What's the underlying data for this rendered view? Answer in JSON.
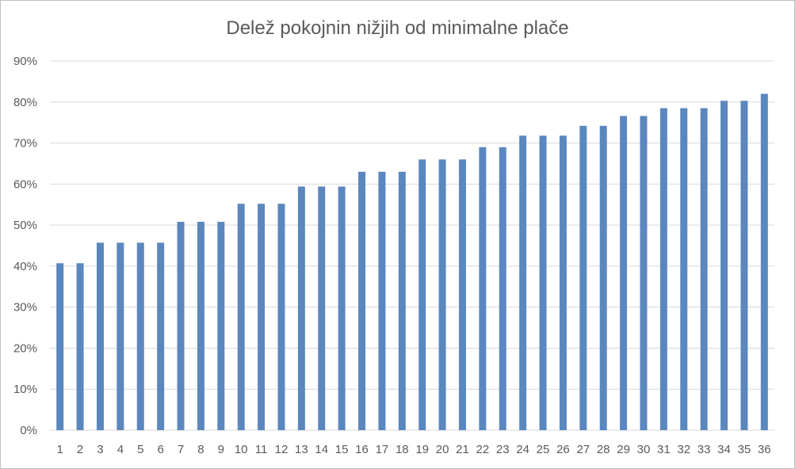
{
  "chart_data": {
    "type": "bar",
    "title": "Delež pokojnin nižjih od minimalne plače",
    "xlabel": "",
    "ylabel": "",
    "categories": [
      "1",
      "2",
      "3",
      "4",
      "5",
      "6",
      "7",
      "8",
      "9",
      "10",
      "11",
      "12",
      "13",
      "14",
      "15",
      "16",
      "17",
      "18",
      "19",
      "20",
      "21",
      "22",
      "23",
      "24",
      "25",
      "26",
      "27",
      "28",
      "29",
      "30",
      "31",
      "32",
      "33",
      "34",
      "35",
      "36"
    ],
    "values": [
      40.7,
      40.7,
      45.7,
      45.7,
      45.7,
      45.7,
      50.8,
      50.8,
      50.8,
      55.2,
      55.2,
      55.2,
      59.4,
      59.4,
      59.4,
      63.0,
      63.0,
      63.0,
      66.0,
      66.0,
      66.0,
      69.0,
      69.0,
      71.8,
      71.8,
      71.8,
      74.2,
      74.2,
      76.6,
      76.6,
      78.5,
      78.5,
      78.5,
      80.3,
      80.3,
      82.0
    ],
    "value_format": "percent",
    "ylim": [
      0,
      90
    ],
    "yticks": [
      "0%",
      "10%",
      "20%",
      "30%",
      "40%",
      "50%",
      "60%",
      "70%",
      "80%",
      "90%"
    ],
    "grid": true,
    "legend": "none",
    "colors": {
      "bar": "#5b87bf",
      "grid": "#d9d9d9",
      "text": "#595959"
    }
  }
}
